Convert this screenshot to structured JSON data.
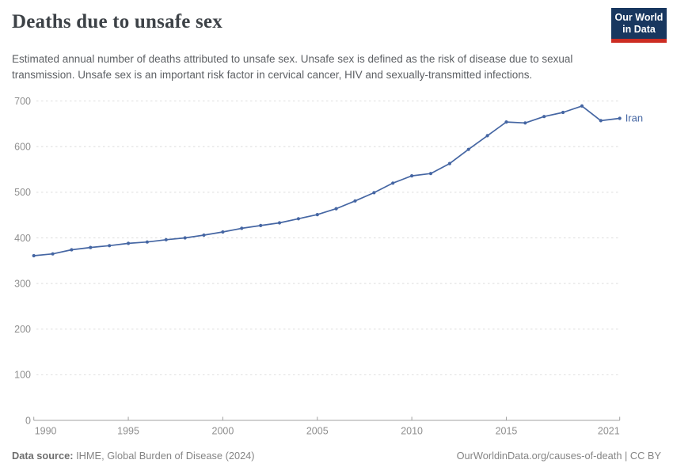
{
  "header": {
    "title": "Deaths due to unsafe sex",
    "subtitle": "Estimated annual number of deaths attributed to unsafe sex. Unsafe sex is defined as the risk of disease due to sexual transmission. Unsafe sex is an important risk factor in cervical cancer, HIV and sexually-transmitted infections.",
    "logo": {
      "line1": "Our World",
      "line2": "in Data"
    }
  },
  "chart_data": {
    "type": "line",
    "title": "Deaths due to unsafe sex",
    "entity_label": "Iran",
    "x": [
      1990,
      1991,
      1992,
      1993,
      1994,
      1995,
      1996,
      1997,
      1998,
      1999,
      2000,
      2001,
      2002,
      2003,
      2004,
      2005,
      2006,
      2007,
      2008,
      2009,
      2010,
      2011,
      2012,
      2013,
      2014,
      2015,
      2016,
      2017,
      2018,
      2019,
      2020,
      2021
    ],
    "series": [
      {
        "name": "Iran",
        "values": [
          361,
          365,
          374,
          379,
          383,
          388,
          391,
          396,
          400,
          406,
          413,
          421,
          427,
          433,
          442,
          451,
          464,
          481,
          499,
          520,
          536,
          541,
          563,
          594,
          624,
          654,
          652,
          666,
          675,
          689,
          657,
          662
        ]
      }
    ],
    "xlabel": "",
    "ylabel": "",
    "xlim": [
      1990,
      2021
    ],
    "ylim": [
      0,
      700
    ],
    "x_ticks": [
      1990,
      1995,
      2000,
      2005,
      2010,
      2015,
      2021
    ],
    "y_ticks": [
      0,
      100,
      200,
      300,
      400,
      500,
      600,
      700
    ],
    "grid": "horizontal-dashed",
    "legend_position": "end-of-line-label",
    "marker": "dot"
  },
  "footer": {
    "source_label": "Data source:",
    "source_text": " IHME, Global Burden of Disease (2024)",
    "credit": "OurWorldinData.org/causes-of-death | CC BY"
  },
  "colors": {
    "line": "#4566a3",
    "entity_label": "#4566a3",
    "grid": "#dedede",
    "axis": "#a1a1a1",
    "tick_text": "#8f8f8f",
    "logo_bg": "#18375f",
    "logo_red": "#cc2c22",
    "title_text": "#3d4247",
    "subtitle_text": "#5e6165"
  }
}
